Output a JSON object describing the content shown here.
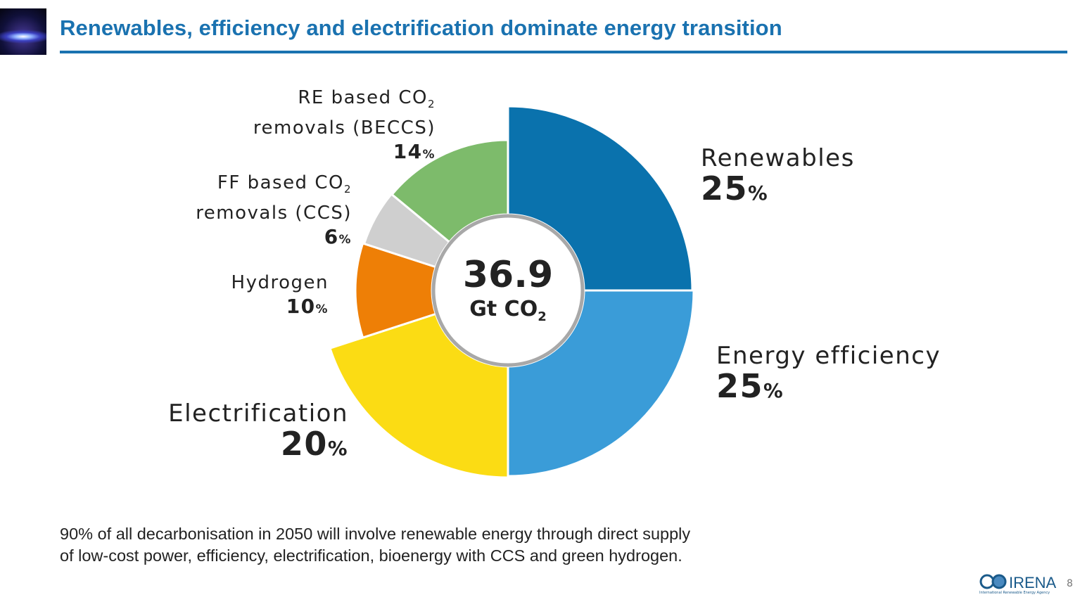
{
  "header": {
    "title": "Renewables, efficiency and electrification dominate energy transition"
  },
  "chart_data": {
    "type": "pie",
    "variant": "donut with varying slice radii",
    "unit": "%",
    "center_value": "36.9",
    "center_unit": "Gt CO",
    "center_unit_sub": "2",
    "slices": [
      {
        "label": "Renewables",
        "value": 25,
        "color": "#0a72ad"
      },
      {
        "label": "Energy efficiency",
        "value": 25,
        "color": "#3a9cd8"
      },
      {
        "label": "Electrification",
        "value": 20,
        "color": "#fbdc14"
      },
      {
        "label": "Hydrogen",
        "value": 10,
        "color": "#ee7f06"
      },
      {
        "label_line1": "FF based CO",
        "label_sub": "2",
        "label_line2": "removals (CCS)",
        "value": 6,
        "color": "#cfcfcf"
      },
      {
        "label_line1": "RE based CO",
        "label_sub": "2",
        "label_line2": "removals (BECCS)",
        "value": 14,
        "color": "#7dbb6b"
      }
    ]
  },
  "footer": {
    "line1": "90% of all decarbonisation in 2050 will involve renewable energy through direct supply",
    "line2": "of low-cost power, efficiency, electrification, bioenergy with CCS and green hydrogen."
  },
  "logo": {
    "name": "IRENA",
    "subtitle": "International Renewable Energy Agency"
  },
  "page_number": "8"
}
